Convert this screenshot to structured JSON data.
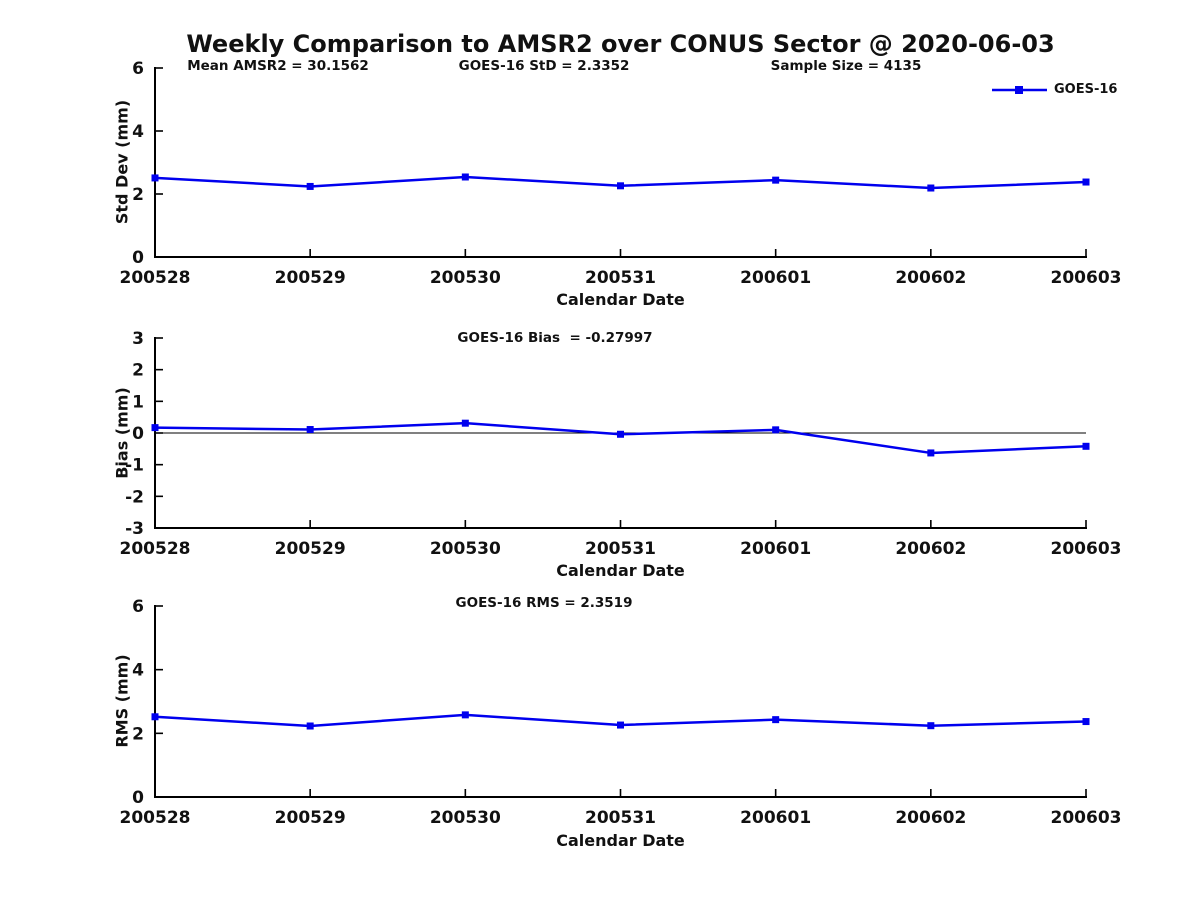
{
  "page": {
    "title": "Weekly Comparison to AMSR2 over CONUS Sector @ 2020-06-03"
  },
  "legend": {
    "label": "GOES-16",
    "position": "top-right",
    "color": "#0000EE",
    "marker": "square"
  },
  "colors": {
    "line": "#0000EE",
    "axis": "#000000",
    "text": "#111111",
    "background": "#ffffff"
  },
  "chart_data": [
    {
      "type": "line",
      "name": "std-dev",
      "annotations": [
        "Mean AMSR2 = 30.1562",
        "GOES-16 StD = 2.3352",
        "Sample Size = 4135"
      ],
      "ylabel": "Std Dev (mm)",
      "xlabel": "Calendar Date",
      "categories": [
        "200528",
        "200529",
        "200530",
        "200531",
        "200601",
        "200602",
        "200603"
      ],
      "yticks": [
        0,
        2,
        4,
        6
      ],
      "ylim": [
        0,
        6
      ],
      "grid": false,
      "zero_line": false,
      "series": [
        {
          "name": "GOES-16",
          "values": [
            2.51,
            2.24,
            2.54,
            2.26,
            2.44,
            2.19,
            2.38
          ]
        }
      ]
    },
    {
      "type": "line",
      "name": "bias",
      "annotations": [
        "GOES-16 Bias  = -0.27997"
      ],
      "ylabel": "Bias (mm)",
      "xlabel": "Calendar Date",
      "categories": [
        "200528",
        "200529",
        "200530",
        "200531",
        "200601",
        "200602",
        "200603"
      ],
      "yticks": [
        -3,
        -2,
        -1,
        0,
        1,
        2,
        3
      ],
      "ylim": [
        -3,
        3
      ],
      "grid": false,
      "zero_line": true,
      "series": [
        {
          "name": "GOES-16",
          "values": [
            0.17,
            0.11,
            0.31,
            -0.04,
            0.1,
            -0.63,
            -0.42
          ]
        }
      ]
    },
    {
      "type": "line",
      "name": "rms",
      "annotations": [
        "GOES-16 RMS = 2.3519"
      ],
      "ylabel": "RMS (mm)",
      "xlabel": "Calendar Date",
      "categories": [
        "200528",
        "200529",
        "200530",
        "200531",
        "200601",
        "200602",
        "200603"
      ],
      "yticks": [
        0,
        2,
        4,
        6
      ],
      "ylim": [
        0,
        6
      ],
      "grid": false,
      "zero_line": false,
      "series": [
        {
          "name": "GOES-16",
          "values": [
            2.52,
            2.23,
            2.58,
            2.26,
            2.43,
            2.24,
            2.37
          ]
        }
      ]
    }
  ]
}
